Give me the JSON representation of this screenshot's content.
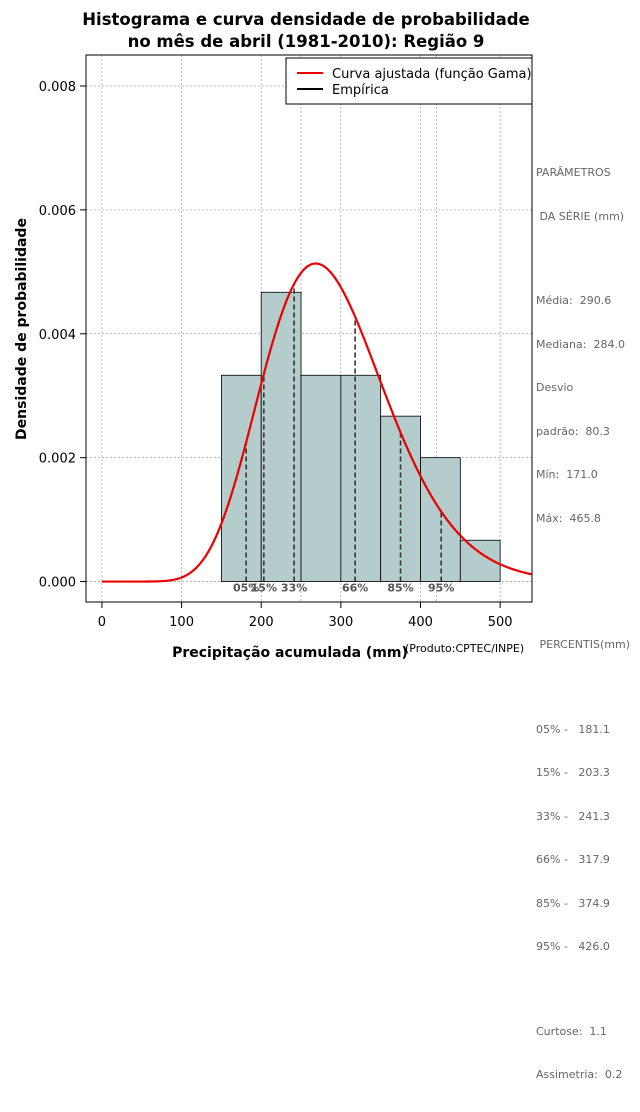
{
  "chart_data": {
    "type": "histogram",
    "title_line1": "Histograma e curva densidade de probabilidade",
    "title_line2": "no mês de abril (1981-2010): Região 9",
    "xlabel": "Precipitação acumulada (mm)",
    "ylabel": "Densidade de probabilidade",
    "credit": "(Produto:CPTEC/INPE)",
    "xlim": [
      -20,
      540
    ],
    "ylim": [
      -0.00033,
      0.0085
    ],
    "grid": true,
    "x_ticks": [
      0,
      100,
      200,
      300,
      400,
      500
    ],
    "x_tick_labels": [
      "0",
      "100",
      "200",
      "300",
      "400",
      "500"
    ],
    "y_ticks": [
      0,
      0.002,
      0.004,
      0.006,
      0.008
    ],
    "y_tick_labels": [
      "0.000",
      "0.002",
      "0.004",
      "0.006",
      "0.008"
    ],
    "grid_x": [
      0,
      100,
      200,
      250,
      300,
      400,
      420,
      500
    ],
    "bins": [
      {
        "start": 150,
        "end": 200,
        "density": 0.00333
      },
      {
        "start": 200,
        "end": 250,
        "density": 0.00467
      },
      {
        "start": 250,
        "end": 300,
        "density": 0.00333
      },
      {
        "start": 300,
        "end": 350,
        "density": 0.00333
      },
      {
        "start": 350,
        "end": 400,
        "density": 0.00267
      },
      {
        "start": 400,
        "end": 450,
        "density": 0.002
      },
      {
        "start": 450,
        "end": 500,
        "density": 0.000667
      }
    ],
    "bar_color": "#b4cccb",
    "gamma_fit": {
      "mean": 290.6,
      "sd": 80.3,
      "color": "#ee0000"
    },
    "percentile_lines": [
      {
        "label": "05%",
        "value": 181.1
      },
      {
        "label": "15%",
        "value": 203.3
      },
      {
        "label": "33%",
        "value": 241.3
      },
      {
        "label": "66%",
        "value": 317.9
      },
      {
        "label": "85%",
        "value": 374.9
      },
      {
        "label": "95%",
        "value": 426.0
      }
    ],
    "legend": {
      "position": "top-right",
      "entries": [
        {
          "label": "Curva ajustada (função Gama)",
          "color": "#ee0000"
        },
        {
          "label": "Empírica",
          "color": "#000000"
        }
      ]
    }
  },
  "side_panel": {
    "params_title_1": "PARÂMETROS",
    "params_title_2": " DA SÉRIE (mm)",
    "media": "Média:  290.6",
    "mediana": "Mediana:  284.0",
    "desvio_1": "Desvio",
    "desvio_2": "padrão:  80.3",
    "min": "Mín:  171.0",
    "max": "Máx:  465.8",
    "percentis_title": " PERCENTIS(mm)",
    "p05": "05% -   181.1",
    "p15": "15% -   203.3",
    "p33": "33% -   241.3",
    "p66": "66% -   317.9",
    "p85": "85% -   374.9",
    "p95": "95% -   426.0",
    "curtose": "Curtose:  1.1",
    "assimetria": "Assimetria:  0.2"
  }
}
